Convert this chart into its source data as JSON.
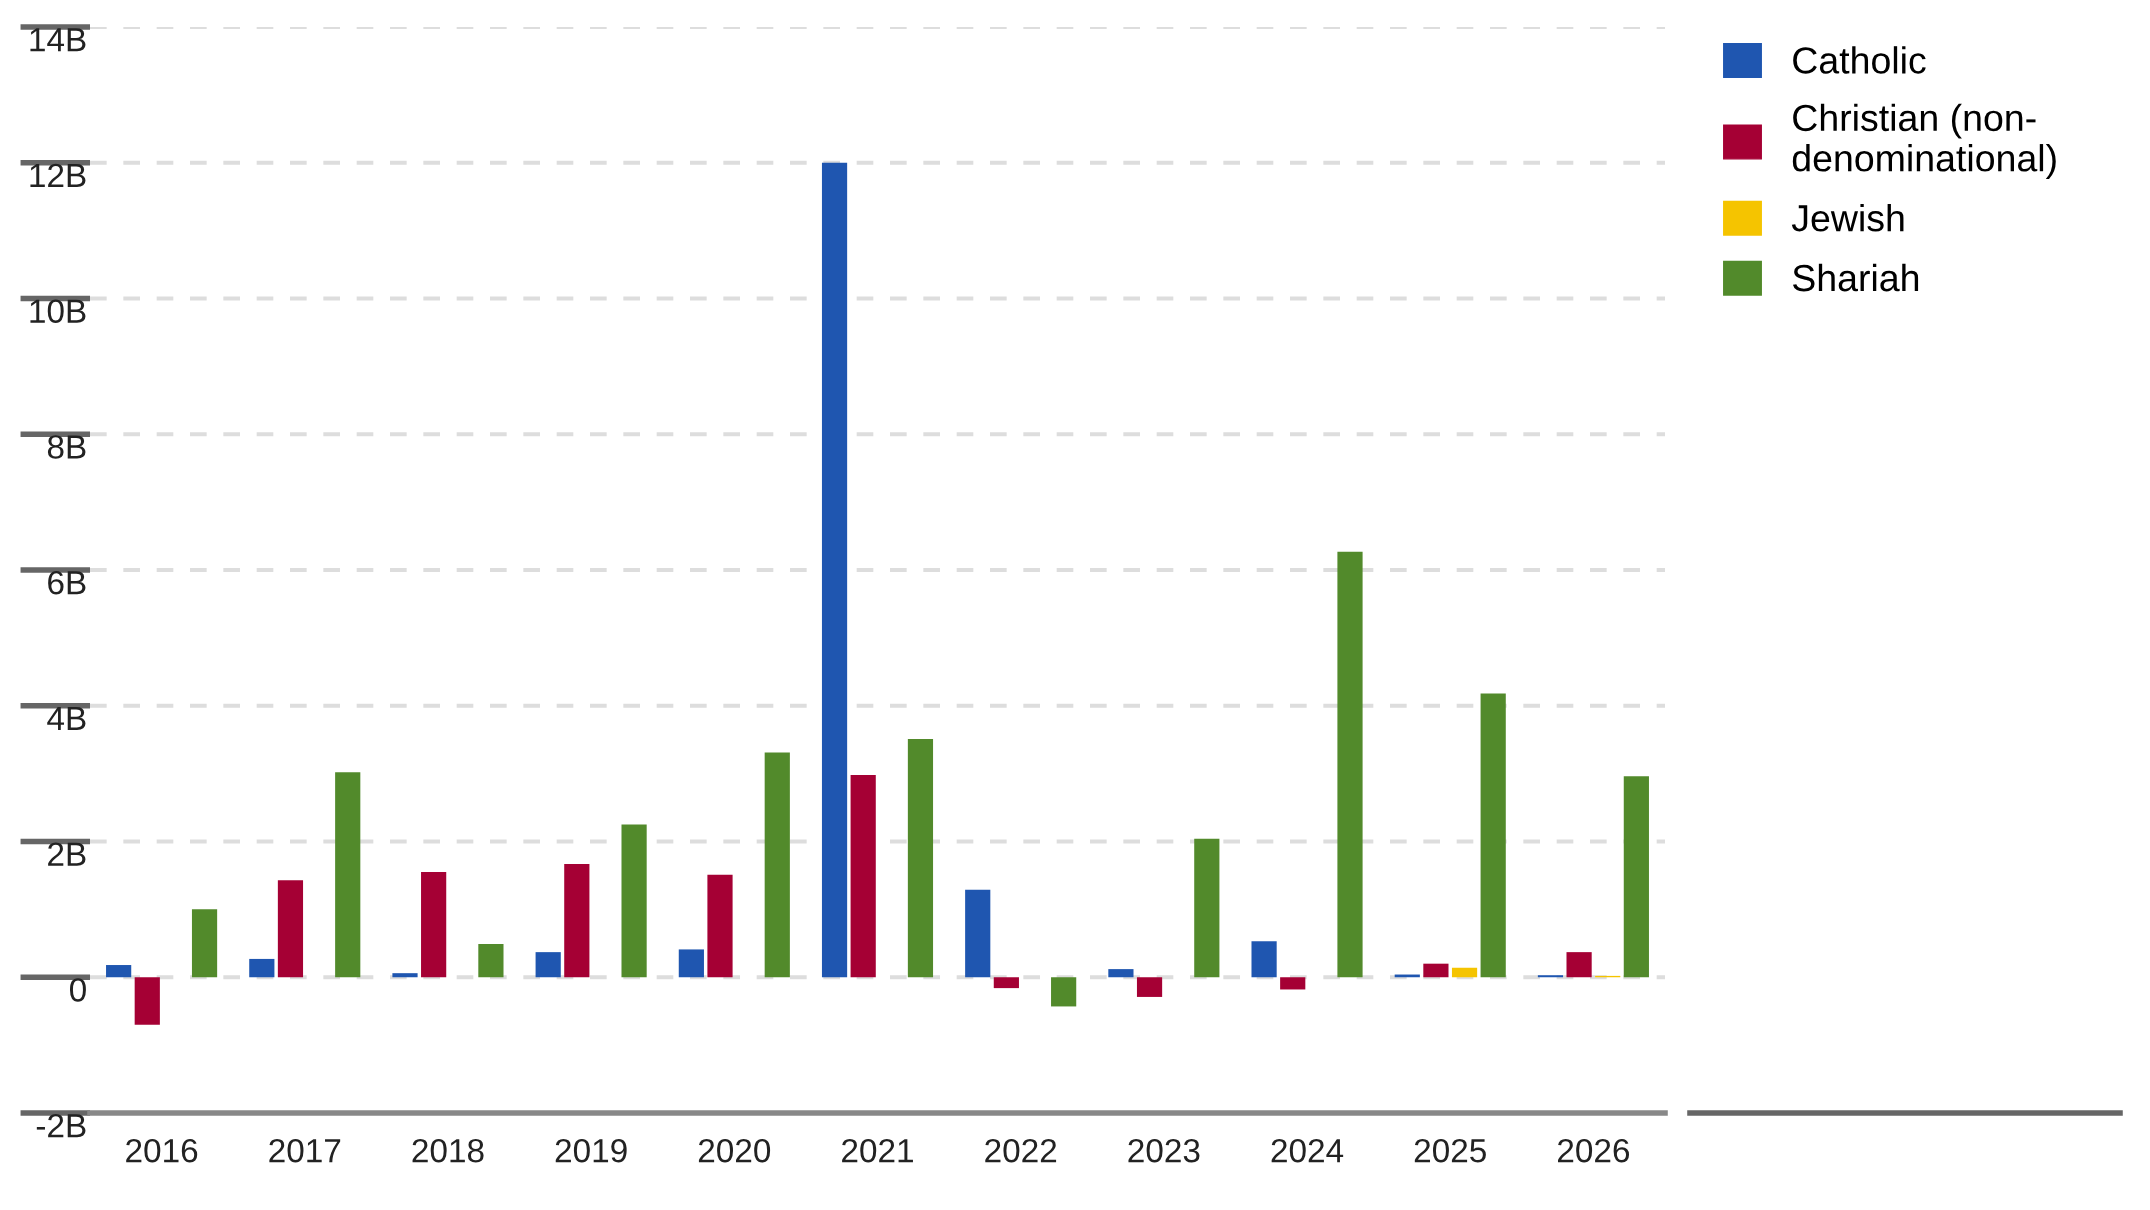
{
  "chart_data": {
    "type": "bar",
    "categories": [
      "2016",
      "2017",
      "2018",
      "2019",
      "2020",
      "2021",
      "2022",
      "2023",
      "2024",
      "2025",
      "2026"
    ],
    "series": [
      {
        "name": "Catholic",
        "color": "#1f56b0",
        "values": [
          0.18,
          0.27,
          0.06,
          0.37,
          0.41,
          12.0,
          1.29,
          0.12,
          0.53,
          0.04,
          0.03
        ]
      },
      {
        "name": "Christian (non-denominational)",
        "color": "#a50034",
        "values": [
          -0.7,
          1.43,
          1.55,
          1.67,
          1.51,
          2.98,
          -0.16,
          -0.29,
          -0.18,
          0.2,
          0.37
        ]
      },
      {
        "name": "Jewish",
        "color": "#f5c400",
        "values": [
          null,
          null,
          null,
          null,
          null,
          null,
          null,
          null,
          null,
          0.14,
          0.02
        ]
      },
      {
        "name": "Shariah",
        "color": "#528a2b",
        "values": [
          1.0,
          3.02,
          0.49,
          2.25,
          3.31,
          3.51,
          -0.43,
          2.04,
          6.27,
          4.18,
          2.96
        ]
      }
    ],
    "ylim": [
      -2,
      14
    ],
    "yticks": [
      {
        "value": -2,
        "label": "-2B"
      },
      0,
      {
        "value": 2,
        "label": "2B"
      },
      {
        "value": 4,
        "label": "4B"
      },
      {
        "value": 6,
        "label": "6B"
      },
      {
        "value": 8,
        "label": "8B"
      },
      {
        "value": 10,
        "label": "10B"
      },
      {
        "value": 12,
        "label": "12B"
      },
      {
        "value": 14,
        "label": "14B"
      }
    ],
    "grid": "y",
    "legend": "top right"
  }
}
